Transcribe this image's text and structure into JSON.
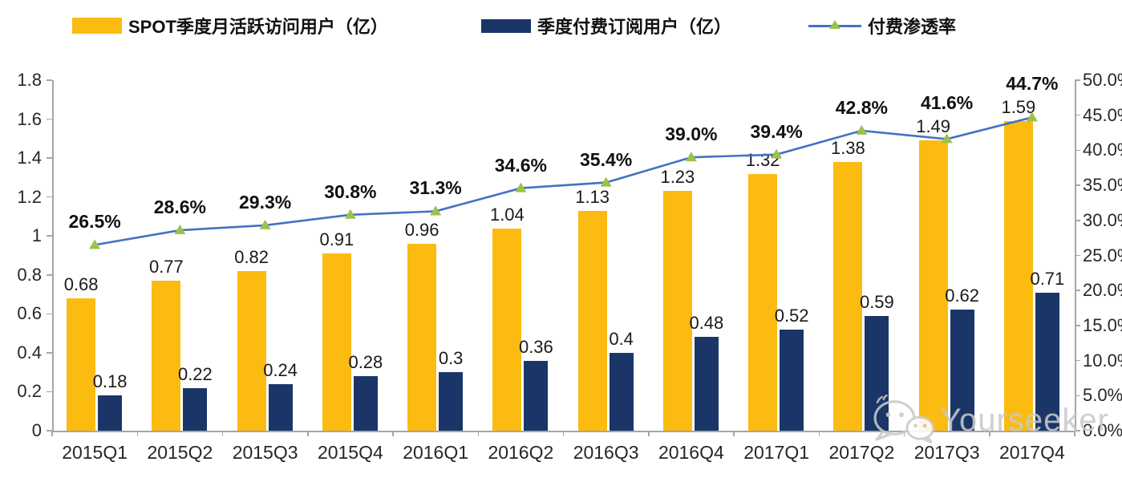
{
  "legend": {
    "items": [
      {
        "label": "SPOT季度月活跃访问用户（亿）",
        "type": "bar",
        "color": "#FBBB10"
      },
      {
        "label": "季度付费订阅用户（亿）",
        "type": "bar",
        "color": "#1A3668"
      },
      {
        "label": "付费渗透率",
        "type": "line",
        "color": "#4472C4",
        "marker_color": "#9DC14B"
      }
    ]
  },
  "chart_data": {
    "type": "bar",
    "subtype": "grouped bars with secondary-axis line",
    "categories": [
      "2015Q1",
      "2015Q2",
      "2015Q3",
      "2015Q4",
      "2016Q1",
      "2016Q2",
      "2016Q3",
      "2016Q4",
      "2017Q1",
      "2017Q2",
      "2017Q3",
      "2017Q4"
    ],
    "series": [
      {
        "name": "SPOT季度月活跃访问用户（亿）",
        "type": "bar",
        "axis": "left",
        "color": "#FBBB10",
        "values": [
          0.68,
          0.77,
          0.82,
          0.91,
          0.96,
          1.04,
          1.13,
          1.23,
          1.32,
          1.38,
          1.49,
          1.59
        ],
        "labels": [
          "0.68",
          "0.77",
          "0.82",
          "0.91",
          "0.96",
          "1.04",
          "1.13",
          "1.23",
          "1.32",
          "1.38",
          "1.49",
          "1.59"
        ]
      },
      {
        "name": "季度付费订阅用户（亿）",
        "type": "bar",
        "axis": "left",
        "color": "#1A3668",
        "values": [
          0.18,
          0.22,
          0.24,
          0.28,
          0.3,
          0.36,
          0.4,
          0.48,
          0.52,
          0.59,
          0.62,
          0.71
        ],
        "labels": [
          "0.18",
          "0.22",
          "0.24",
          "0.28",
          "0.3",
          "0.36",
          "0.4",
          "0.48",
          "0.52",
          "0.59",
          "0.62",
          "0.71"
        ]
      },
      {
        "name": "付费渗透率",
        "type": "line",
        "axis": "right",
        "color": "#4472C4",
        "marker": "triangle",
        "marker_color": "#9DC14B",
        "values": [
          26.5,
          28.6,
          29.3,
          30.8,
          31.3,
          34.6,
          35.4,
          39.0,
          39.4,
          42.8,
          41.6,
          44.7
        ],
        "labels": [
          "26.5%",
          "28.6%",
          "29.3%",
          "30.8%",
          "31.3%",
          "34.6%",
          "35.4%",
          "39.0%",
          "39.4%",
          "42.8%",
          "41.6%",
          "44.7%"
        ]
      }
    ],
    "left_axis": {
      "min": 0,
      "max": 1.8,
      "ticks": [
        "0",
        "0.2",
        "0.4",
        "0.6",
        "0.8",
        "1",
        "1.2",
        "1.4",
        "1.6",
        "1.8"
      ]
    },
    "right_axis": {
      "min": 0,
      "max": 50,
      "ticks": [
        "0.0%",
        "5.0%",
        "10.0%",
        "15.0%",
        "20.0%",
        "25.0%",
        "30.0%",
        "35.0%",
        "40.0%",
        "45.0%",
        "50.0%"
      ]
    },
    "grid": false,
    "legend_position": "top",
    "colors": {
      "axis": "#A6A6A6",
      "label": "#1A1A1A",
      "pct_label": "#111111"
    }
  },
  "watermark": {
    "text": "Yourseeker",
    "icon": "wechat-icon",
    "color": "#C9C9C9"
  }
}
